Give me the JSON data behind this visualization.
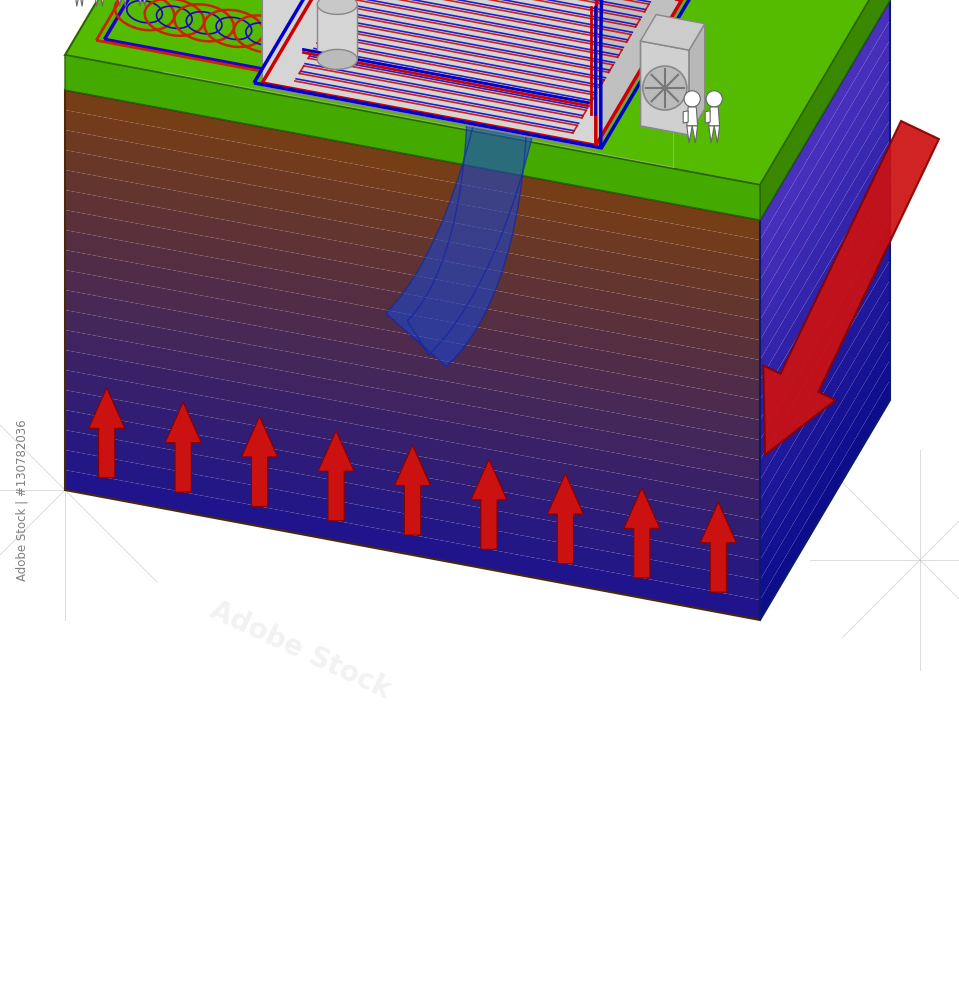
{
  "bg_color": "#ffffff",
  "earth_brown": "#7a4010",
  "earth_deep_blue": "#1a2b9c",
  "grass_green": "#55bb00",
  "grass_dark": "#3a8800",
  "house_wall_light": "#e0e0e0",
  "house_wall_mid": "#c0c0c0",
  "house_wall_dark": "#a0a0a0",
  "house_wall_gray": "#b8b8b8",
  "roof_light": "#d8d8d8",
  "roof_mid": "#a8a8a8",
  "roof_dark": "#888888",
  "solar_dark": "#1a1a28",
  "pipe_hot": "#cc0000",
  "pipe_cold": "#0000cc",
  "arrow_red": "#cc1111",
  "loop_red": "#cc2200",
  "loop_blue": "#2200cc",
  "blue_arch": "#1133bb",
  "heat_pump_gray": "#cccccc",
  "sketch_gray": "#b0b0b0",
  "watermark": "#888888",
  "adobe_text": "Adobe Stock | #130782036",
  "floor_heat_rect_red": "#cc0000",
  "floor_heat_rect_blue": "#0000cc"
}
